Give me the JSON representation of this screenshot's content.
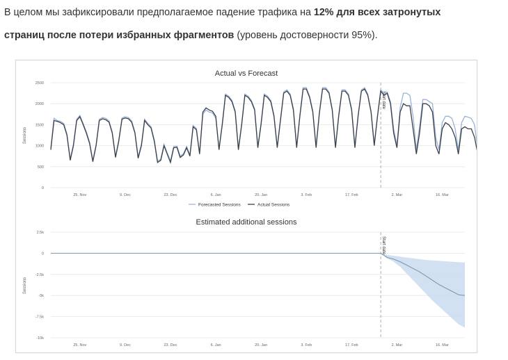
{
  "intro": {
    "text_1": "В целом мы зафиксировали предполагаемое падение трафика на ",
    "bold_1": "12% для всех затронутых",
    "bold_2": "страниц после потери избранных фрагментов",
    "text_2": " (уровень достоверности 95%)."
  },
  "chart_data": [
    {
      "type": "line",
      "title": "Actual vs Forecast",
      "ylabel": "Sessions",
      "xlabel": "",
      "ylim": [
        0,
        2500
      ],
      "yticks": [
        0,
        500,
        1000,
        1500,
        2000,
        2500
      ],
      "yticklabels": [
        "0",
        "500",
        "1000",
        "1500",
        "2000",
        "2500"
      ],
      "x_start": "Nov 16",
      "xticks": [
        {
          "day": 9,
          "label": "25. Nov"
        },
        {
          "day": 23,
          "label": "9. Dec"
        },
        {
          "day": 37,
          "label": "23. Dec"
        },
        {
          "day": 51,
          "label": "6. Jan"
        },
        {
          "day": 65,
          "label": "20. Jan"
        },
        {
          "day": 79,
          "label": "3. Feb"
        },
        {
          "day": 93,
          "label": "17. Feb"
        },
        {
          "day": 107,
          "label": "2. Mar"
        },
        {
          "day": 121,
          "label": "16. Mar"
        }
      ],
      "annotation": {
        "label": "Start date",
        "day": 102
      },
      "legend": {
        "position": "bottom-center",
        "items": [
          "Forecasted Sessions",
          "Actual Sessions"
        ]
      },
      "colors": {
        "forecast": "#9bb3d6",
        "actual": "#3a3f4a",
        "grid": "#e6e6e6",
        "marker": "#999999"
      },
      "series": [
        {
          "name": "Actual Sessions",
          "values": [
            900,
            1600,
            1580,
            1550,
            1500,
            1250,
            650,
            1000,
            1600,
            1690,
            1500,
            1300,
            1050,
            620,
            1000,
            1600,
            1640,
            1620,
            1560,
            1300,
            720,
            1100,
            1630,
            1660,
            1640,
            1560,
            1300,
            700,
            1000,
            1600,
            1500,
            1420,
            1100,
            600,
            650,
            1000,
            800,
            600,
            950,
            960,
            720,
            780,
            950,
            750,
            1450,
            1380,
            800,
            1800,
            1900,
            1850,
            1820,
            1700,
            900,
            1500,
            2200,
            2150,
            2050,
            1800,
            900,
            1500,
            2200,
            2150,
            2050,
            1850,
            950,
            1500,
            2200,
            2150,
            2050,
            1700,
            950,
            1600,
            2250,
            2300,
            2200,
            1850,
            950,
            1700,
            2350,
            2350,
            2150,
            1800,
            950,
            1750,
            2350,
            2350,
            2250,
            1850,
            950,
            1700,
            2300,
            2300,
            2200,
            1850,
            950,
            1700,
            2300,
            2350,
            2200,
            1800,
            1000,
            1700,
            2300,
            2200,
            2250,
            2000,
            1300,
            950,
            1800,
            2000,
            1950,
            1950,
            1400,
            800,
            1300,
            2000,
            2000,
            1950,
            1800,
            1000,
            800,
            1400,
            1550,
            1500,
            1400,
            1200,
            800,
            1400,
            1450,
            1400,
            1400,
            1200,
            800,
            1050
          ]
        },
        {
          "name": "Forecasted Sessions",
          "values": [
            950,
            1650,
            1600,
            1580,
            1530,
            1280,
            680,
            1030,
            1630,
            1720,
            1530,
            1330,
            1080,
            650,
            1030,
            1630,
            1670,
            1650,
            1590,
            1330,
            750,
            1130,
            1660,
            1690,
            1670,
            1590,
            1330,
            730,
            1030,
            1630,
            1530,
            1450,
            1130,
            630,
            680,
            1030,
            830,
            630,
            980,
            990,
            750,
            810,
            980,
            780,
            1480,
            1410,
            830,
            1750,
            1850,
            1800,
            1780,
            1650,
            930,
            1530,
            2230,
            2180,
            2080,
            1830,
            930,
            1530,
            2230,
            2180,
            2080,
            1880,
            980,
            1530,
            2230,
            2180,
            2080,
            1730,
            980,
            1630,
            2280,
            2330,
            2230,
            1880,
            980,
            1730,
            2380,
            2380,
            2180,
            1830,
            980,
            1780,
            2380,
            2380,
            2280,
            1880,
            980,
            1730,
            2330,
            2330,
            2230,
            1880,
            980,
            1730,
            2330,
            2380,
            2230,
            1830,
            1030,
            1730,
            2330,
            2250,
            2280,
            2050,
            1400,
            1000,
            1900,
            2250,
            2250,
            2200,
            1700,
            900,
            1450,
            2100,
            2100,
            2050,
            2000,
            1200,
            900,
            1550,
            1700,
            1700,
            1650,
            1400,
            900,
            1550,
            1700,
            1680,
            1650,
            1500,
            900,
            1100
          ]
        }
      ]
    },
    {
      "type": "area",
      "title": "Estimated additional sessions",
      "ylabel": "Sessions",
      "xlabel": "",
      "ylim": [
        -10000,
        2500
      ],
      "yticks": [
        2500,
        0,
        -2500,
        -5000,
        -7500,
        -10000
      ],
      "yticklabels": [
        "2.5k",
        "0",
        "-2.5k",
        "-5k",
        "-7.5k",
        "-10k"
      ],
      "x_start": "Nov 16",
      "xticks": [
        {
          "day": 9,
          "label": "25. Nov"
        },
        {
          "day": 23,
          "label": "9. Dec"
        },
        {
          "day": 37,
          "label": "23. Dec"
        },
        {
          "day": 51,
          "label": "6. Jan"
        },
        {
          "day": 65,
          "label": "20. Jan"
        },
        {
          "day": 79,
          "label": "3. Feb"
        },
        {
          "day": 93,
          "label": "17. Feb"
        },
        {
          "day": 107,
          "label": "2. Mar"
        },
        {
          "day": 121,
          "label": "16. Mar"
        }
      ],
      "annotation": {
        "label": "Start date",
        "day": 102
      },
      "colors": {
        "line": "#7f93ad",
        "band": "#c9dcf0",
        "grid": "#e6e6e6",
        "marker": "#999999"
      },
      "baseline": {
        "from_day": 0,
        "to_day": 102,
        "value": 0
      },
      "series": [
        {
          "name": "Estimated additional sessions",
          "days": [
            102,
            104,
            106,
            108,
            110,
            112,
            114,
            116,
            118,
            120,
            122,
            124,
            126,
            128
          ],
          "values": [
            0,
            -500,
            -700,
            -1000,
            -1400,
            -1800,
            -2200,
            -2700,
            -3200,
            -3700,
            -4100,
            -4500,
            -4900,
            -5000
          ],
          "lower": [
            0,
            -600,
            -1000,
            -1600,
            -2400,
            -3200,
            -4000,
            -4800,
            -5600,
            -6300,
            -7000,
            -7700,
            -8400,
            -8800
          ],
          "upper": [
            0,
            -200,
            -300,
            -400,
            -500,
            -600,
            -700,
            -800,
            -850,
            -900,
            -950,
            -1000,
            -1050,
            -1100
          ]
        }
      ]
    }
  ]
}
